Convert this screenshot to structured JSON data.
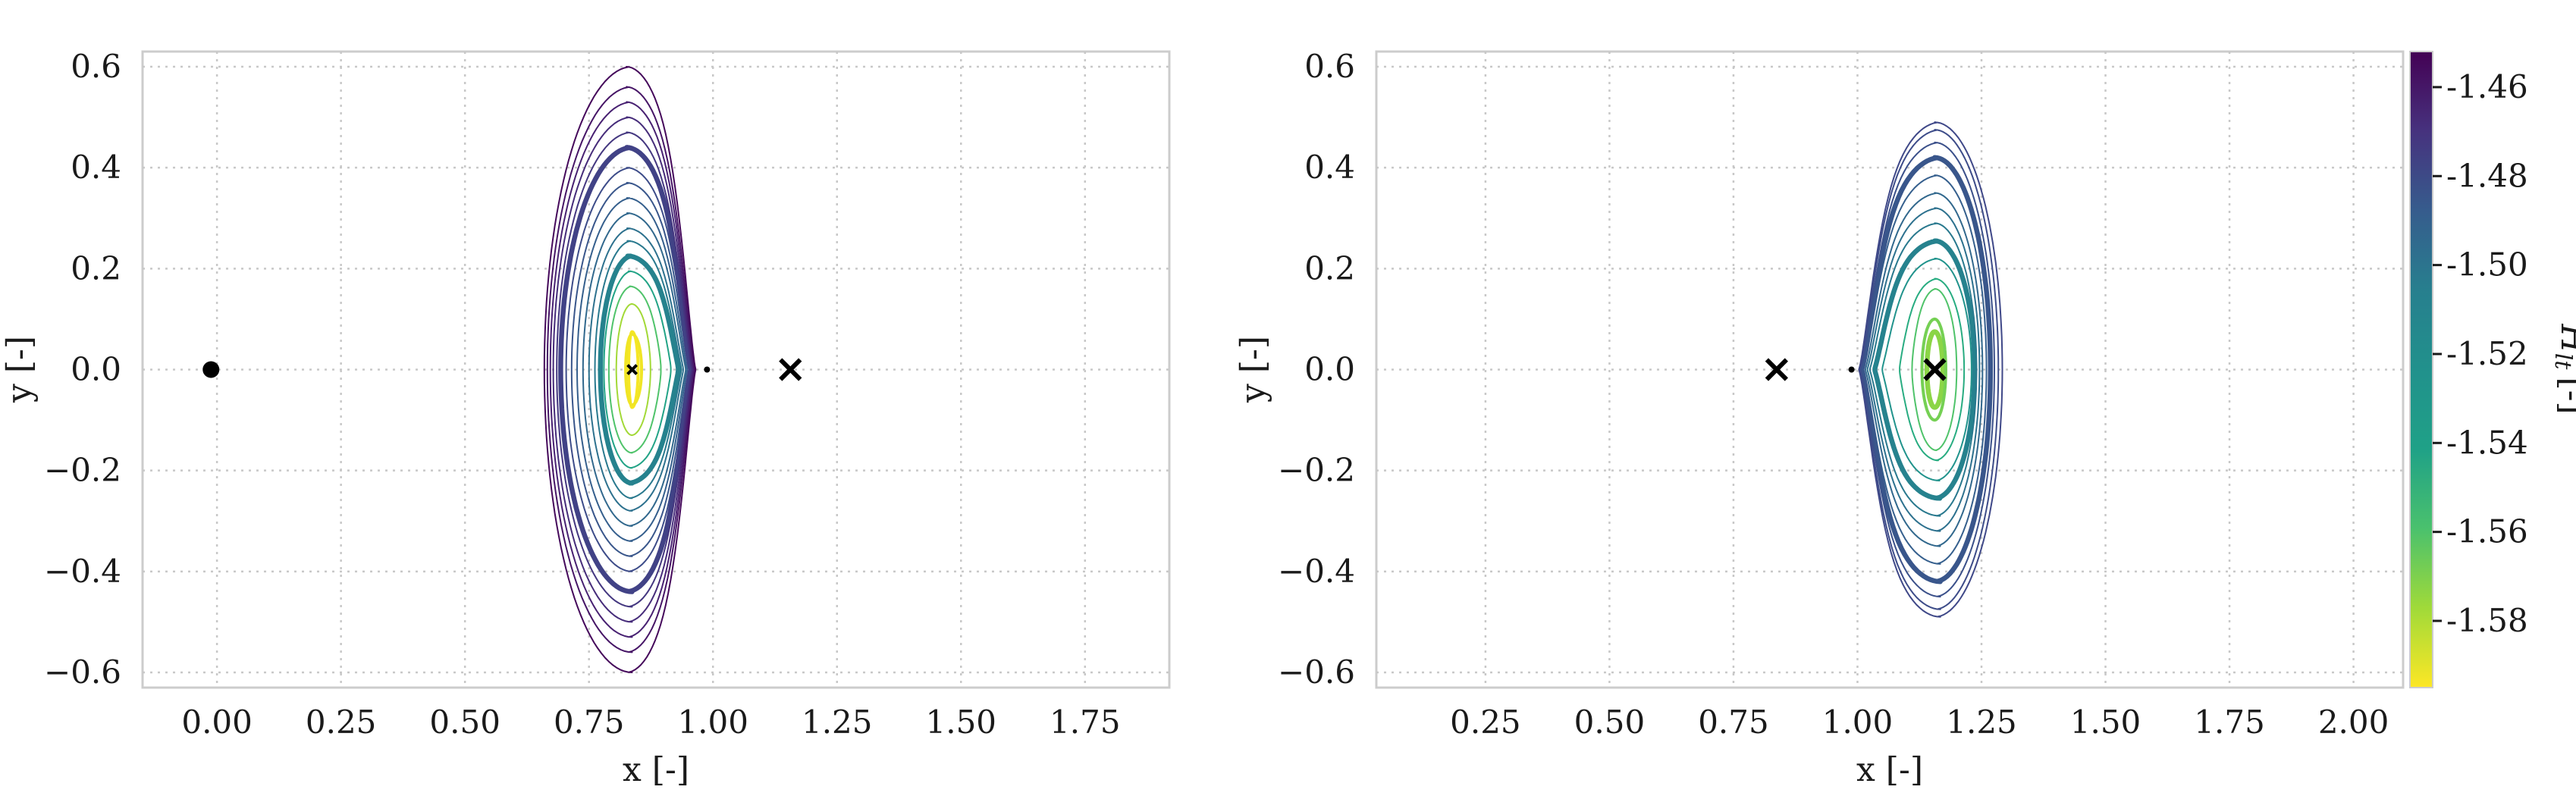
{
  "chart_data": [
    {
      "type": "line",
      "title": "",
      "xlabel": "x [-]",
      "ylabel": "y [-]",
      "xlim": [
        -0.15,
        1.92
      ],
      "ylim": [
        -0.63,
        0.63
      ],
      "grid": true,
      "xticks": [
        0.0,
        0.25,
        0.5,
        0.75,
        1.0,
        1.25,
        1.5,
        1.75
      ],
      "xtick_labels": [
        "0.00",
        "0.25",
        "0.50",
        "0.75",
        "1.00",
        "1.25",
        "1.50",
        "1.75"
      ],
      "yticks": [
        -0.6,
        -0.4,
        -0.2,
        0.0,
        0.2,
        0.4,
        0.6
      ],
      "ytick_labels": [
        "−0.6",
        "−0.4",
        "−0.2",
        "0.0",
        "0.2",
        "0.4",
        "0.6"
      ],
      "center_x": 0.8369,
      "markers": [
        {
          "kind": "dot",
          "x": -0.012,
          "y": 0.0
        },
        {
          "kind": "small-dot",
          "x": 0.988,
          "y": 0.0
        },
        {
          "kind": "cross",
          "x": 1.156,
          "y": 0.0
        },
        {
          "kind": "small-cross",
          "x": 0.837,
          "y": 0.0
        }
      ],
      "orbits": [
        {
          "xl": 0.83,
          "xr": 0.849,
          "ymax": 0.075,
          "neck": 0.0,
          "H": -1.5935,
          "w": 3
        },
        {
          "xl": 0.824,
          "xr": 0.856,
          "ymax": 0.07,
          "neck": 0.0,
          "H": -1.592,
          "w": 3
        },
        {
          "xl": 0.805,
          "xr": 0.874,
          "ymax": 0.13,
          "neck": 0.1,
          "H": -1.575,
          "w": 1
        },
        {
          "xl": 0.79,
          "xr": 0.895,
          "ymax": 0.165,
          "neck": 0.4,
          "H": -1.555,
          "w": 1
        },
        {
          "xl": 0.78,
          "xr": 0.915,
          "ymax": 0.195,
          "neck": 0.6,
          "H": -1.535,
          "w": 1
        },
        {
          "xl": 0.773,
          "xr": 0.93,
          "ymax": 0.225,
          "neck": 0.75,
          "H": -1.515,
          "w": 7
        },
        {
          "xl": 0.762,
          "xr": 0.936,
          "ymax": 0.255,
          "neck": 0.8,
          "H": -1.51,
          "w": 1
        },
        {
          "xl": 0.75,
          "xr": 0.94,
          "ymax": 0.28,
          "neck": 0.84,
          "H": -1.505,
          "w": 1
        },
        {
          "xl": 0.738,
          "xr": 0.945,
          "ymax": 0.31,
          "neck": 0.86,
          "H": -1.5,
          "w": 1
        },
        {
          "xl": 0.726,
          "xr": 0.948,
          "ymax": 0.34,
          "neck": 0.88,
          "H": -1.495,
          "w": 1
        },
        {
          "xl": 0.715,
          "xr": 0.951,
          "ymax": 0.37,
          "neck": 0.9,
          "H": -1.49,
          "w": 1
        },
        {
          "xl": 0.704,
          "xr": 0.953,
          "ymax": 0.4,
          "neck": 0.91,
          "H": -1.485,
          "w": 1
        },
        {
          "xl": 0.693,
          "xr": 0.955,
          "ymax": 0.44,
          "neck": 0.92,
          "H": -1.48,
          "w": 7
        },
        {
          "xl": 0.685,
          "xr": 0.957,
          "ymax": 0.47,
          "neck": 0.93,
          "H": -1.475,
          "w": 1
        },
        {
          "xl": 0.678,
          "xr": 0.959,
          "ymax": 0.5,
          "neck": 0.94,
          "H": -1.47,
          "w": 1
        },
        {
          "xl": 0.672,
          "xr": 0.961,
          "ymax": 0.53,
          "neck": 0.945,
          "H": -1.465,
          "w": 1
        },
        {
          "xl": 0.666,
          "xr": 0.963,
          "ymax": 0.56,
          "neck": 0.95,
          "H": -1.46,
          "w": 1
        },
        {
          "xl": 0.66,
          "xr": 0.965,
          "ymax": 0.6,
          "neck": 0.955,
          "H": -1.455,
          "w": 1
        }
      ]
    },
    {
      "type": "line",
      "title": "",
      "xlabel": "x [-]",
      "ylabel": "y [-]",
      "xlim": [
        0.03,
        2.1
      ],
      "ylim": [
        -0.63,
        0.63
      ],
      "grid": true,
      "xticks": [
        0.25,
        0.5,
        0.75,
        1.0,
        1.25,
        1.5,
        1.75,
        2.0
      ],
      "xtick_labels": [
        "0.25",
        "0.50",
        "0.75",
        "1.00",
        "1.25",
        "1.50",
        "1.75",
        "2.00"
      ],
      "yticks": [
        -0.6,
        -0.4,
        -0.2,
        0.0,
        0.2,
        0.4,
        0.6
      ],
      "ytick_labels": [
        "−0.6",
        "−0.4",
        "−0.2",
        "0.0",
        "0.2",
        "0.4",
        "0.6"
      ],
      "center_x": 1.1557,
      "markers": [
        {
          "kind": "cross",
          "x": 0.837,
          "y": 0.0
        },
        {
          "kind": "small-dot",
          "x": 0.988,
          "y": 0.0
        },
        {
          "kind": "cross",
          "x": 1.156,
          "y": 0.0
        }
      ],
      "orbits": [
        {
          "xl": 1.14,
          "xr": 1.172,
          "ymax": 0.075,
          "neck": 0.0,
          "H": -1.57,
          "w": 7
        },
        {
          "xl": 1.13,
          "xr": 1.178,
          "ymax": 0.1,
          "neck": 0.0,
          "H": -1.565,
          "w": 3
        },
        {
          "xl": 1.11,
          "xr": 1.2,
          "ymax": 0.16,
          "neck": 0.3,
          "H": -1.555,
          "w": 1
        },
        {
          "xl": 1.085,
          "xr": 1.215,
          "ymax": 0.18,
          "neck": 0.6,
          "H": -1.54,
          "w": 1
        },
        {
          "xl": 1.05,
          "xr": 1.23,
          "ymax": 0.22,
          "neck": 0.8,
          "H": -1.525,
          "w": 1
        },
        {
          "xl": 1.035,
          "xr": 1.236,
          "ymax": 0.255,
          "neck": 0.86,
          "H": -1.515,
          "w": 7
        },
        {
          "xl": 1.025,
          "xr": 1.24,
          "ymax": 0.29,
          "neck": 0.9,
          "H": -1.51,
          "w": 1
        },
        {
          "xl": 1.02,
          "xr": 1.246,
          "ymax": 0.32,
          "neck": 0.91,
          "H": -1.505,
          "w": 1
        },
        {
          "xl": 1.016,
          "xr": 1.252,
          "ymax": 0.35,
          "neck": 0.92,
          "H": -1.5,
          "w": 1
        },
        {
          "xl": 1.012,
          "xr": 1.26,
          "ymax": 0.385,
          "neck": 0.93,
          "H": -1.495,
          "w": 1
        },
        {
          "xl": 1.009,
          "xr": 1.268,
          "ymax": 0.42,
          "neck": 0.94,
          "H": -1.49,
          "w": 7
        },
        {
          "xl": 1.007,
          "xr": 1.276,
          "ymax": 0.45,
          "neck": 0.945,
          "H": -1.487,
          "w": 1
        },
        {
          "xl": 1.005,
          "xr": 1.284,
          "ymax": 0.475,
          "neck": 0.95,
          "H": -1.485,
          "w": 1
        },
        {
          "xl": 1.003,
          "xr": 1.292,
          "ymax": 0.49,
          "neck": 0.955,
          "H": -1.483,
          "w": 1
        }
      ]
    }
  ],
  "colorbar": {
    "label": "H_lt [-]",
    "label_main": "H",
    "label_sub": "lt",
    "label_unit": "[-]",
    "range": [
      -1.595,
      -1.452
    ],
    "ticks": [
      -1.46,
      -1.48,
      -1.5,
      -1.52,
      -1.54,
      -1.56,
      -1.58
    ],
    "tick_labels": [
      "-1.46",
      "-1.48",
      "-1.50",
      "-1.52",
      "-1.54",
      "-1.56",
      "-1.58"
    ],
    "colormap": "viridis"
  }
}
